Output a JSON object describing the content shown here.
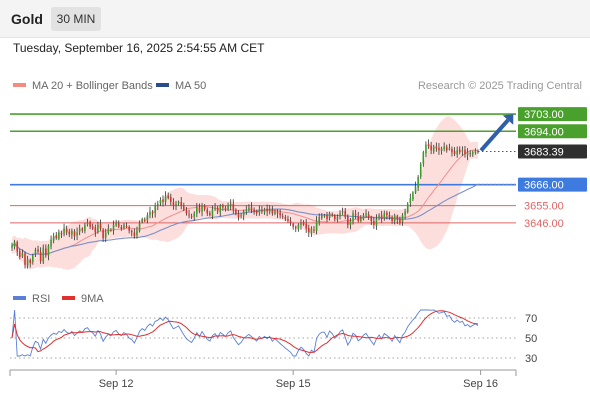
{
  "header": {
    "symbol": "Gold",
    "timeframe": "30 MIN",
    "datetime": "Tuesday, September 16, 2025 2:54:55 AM CET"
  },
  "legend": {
    "items": [
      {
        "label": "MA 20 + Bollinger Bands",
        "color": "#f28b82"
      },
      {
        "label": "MA 50",
        "color": "#2b4c8c"
      }
    ],
    "credit": "Research © 2025 Trading Central"
  },
  "rsi_legend": {
    "items": [
      {
        "label": "RSI",
        "color": "#5b7fd6"
      },
      {
        "label": "9MA",
        "color": "#e03030"
      }
    ]
  },
  "colors": {
    "bull": "#3a9a2a",
    "bear": "#d9302b",
    "resistance": "#4aa02c",
    "pivot": "#3d7be0",
    "support": "#e06666",
    "band": "#fbd3d0",
    "ma20": "#f08f8f",
    "ma50": "#7c8fc8",
    "arrow": "#2f5fa8"
  },
  "chart_data": [
    {
      "type": "candlestick",
      "title": "Gold 30 MIN",
      "x_ticks": [
        {
          "label": "Sep 12",
          "idx": 40
        },
        {
          "label": "Sep 15",
          "idx": 108
        },
        {
          "label": "Sep 16",
          "idx": 180
        }
      ],
      "ylim": [
        3615,
        3713
      ],
      "levels": [
        {
          "value": 3703.0,
          "label": "3703.00",
          "kind": "resistance"
        },
        {
          "value": 3694.0,
          "label": "3694.00",
          "kind": "resistance"
        },
        {
          "value": 3683.39,
          "label": "3683.39",
          "kind": "last"
        },
        {
          "value": 3666.0,
          "label": "3666.00",
          "kind": "pivot"
        },
        {
          "value": 3655.0,
          "label": "3655.00",
          "kind": "support"
        },
        {
          "value": 3646.0,
          "label": "3646.00",
          "kind": "support"
        }
      ],
      "closes": [
        3634,
        3636,
        3631,
        3628,
        3630,
        3624,
        3627,
        3625,
        3629,
        3632,
        3631,
        3626,
        3633,
        3629,
        3634,
        3637,
        3639,
        3638,
        3641,
        3640,
        3643,
        3641,
        3640,
        3642,
        3639,
        3641,
        3643,
        3642,
        3645,
        3646,
        3644,
        3643,
        3641,
        3645,
        3643,
        3638,
        3641,
        3643,
        3642,
        3645,
        3646,
        3644,
        3643,
        3645,
        3644,
        3642,
        3641,
        3639,
        3642,
        3646,
        3648,
        3647,
        3650,
        3652,
        3651,
        3655,
        3656,
        3658,
        3657,
        3660,
        3659,
        3657,
        3655,
        3656,
        3657,
        3655,
        3653,
        3651,
        3650,
        3649,
        3651,
        3654,
        3652,
        3655,
        3653,
        3651,
        3650,
        3653,
        3654,
        3652,
        3655,
        3654,
        3653,
        3655,
        3656,
        3653,
        3651,
        3649,
        3650,
        3652,
        3653,
        3654,
        3653,
        3652,
        3651,
        3653,
        3652,
        3653,
        3652,
        3653,
        3651,
        3652,
        3651,
        3650,
        3649,
        3648,
        3647,
        3646,
        3644,
        3643,
        3645,
        3646,
        3645,
        3643,
        3641,
        3643,
        3642,
        3647,
        3649,
        3650,
        3650,
        3648,
        3651,
        3650,
        3648,
        3649,
        3651,
        3652,
        3649,
        3645,
        3647,
        3651,
        3650,
        3647,
        3648,
        3650,
        3651,
        3649,
        3647,
        3645,
        3648,
        3650,
        3648,
        3651,
        3650,
        3649,
        3647,
        3650,
        3648,
        3646,
        3650,
        3652,
        3656,
        3659,
        3662,
        3665,
        3670,
        3677,
        3683,
        3687,
        3686,
        3684,
        3686,
        3685,
        3684,
        3685,
        3686,
        3684,
        3685,
        3683,
        3682,
        3684,
        3683,
        3684,
        3682,
        3683,
        3682,
        3683,
        3684,
        3683.39
      ],
      "ma50_start": 3638,
      "ma50_end": 3671
    },
    {
      "type": "line",
      "title": "RSI",
      "series": [
        {
          "name": "RSI"
        },
        {
          "name": "9MA"
        }
      ],
      "ylim": [
        20,
        80
      ],
      "y_ticks": [
        70,
        50,
        30
      ]
    }
  ]
}
